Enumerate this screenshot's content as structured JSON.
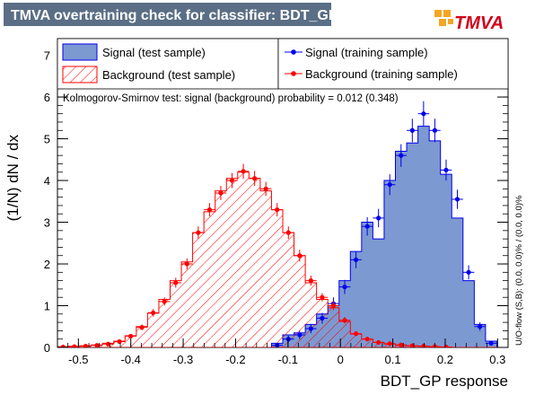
{
  "header": {
    "title": "TMVA overtraining check for classifier: BDT_GP",
    "logo_text": "TMVA"
  },
  "colors": {
    "title_bg": "#5a6e86",
    "signal_fill": "#7d99d1",
    "signal_line": "#0000ee",
    "background_line": "#ff0000",
    "background_hatch": "#ff0000"
  },
  "chart_data": {
    "type": "histogram",
    "xlabel": "BDT_GP response",
    "ylabel": "(1/N) dN / dx",
    "xlim": [
      -0.54,
      0.32
    ],
    "ylim": [
      0,
      7.4
    ],
    "xticks": [
      "-0.5",
      "-0.4",
      "-0.3",
      "-0.2",
      "-0.1",
      "0",
      "0.1",
      "0.2",
      "0.3"
    ],
    "yticks": [
      "0",
      "1",
      "2",
      "3",
      "4",
      "5",
      "6",
      "7"
    ],
    "bin_edges": [
      -0.54,
      -0.5185,
      -0.497,
      -0.4755,
      -0.454,
      -0.4325,
      -0.411,
      -0.3895,
      -0.368,
      -0.3465,
      -0.325,
      -0.3035,
      -0.282,
      -0.2605,
      -0.239,
      -0.2175,
      -0.196,
      -0.1745,
      -0.153,
      -0.1315,
      -0.11,
      -0.0885,
      -0.067,
      -0.0455,
      -0.024,
      -0.0025,
      0.019,
      0.0405,
      0.062,
      0.0835,
      0.105,
      0.1265,
      0.148,
      0.1695,
      0.191,
      0.2125,
      0.234,
      0.2555,
      0.277,
      0.2985,
      0.32
    ],
    "series": [
      {
        "name": "Signal (test sample)",
        "style": "filled-histogram",
        "values": [
          0,
          0,
          0,
          0,
          0,
          0,
          0,
          0,
          0,
          0,
          0,
          0,
          0,
          0,
          0,
          0,
          0,
          0,
          0,
          0.1,
          0.3,
          0.35,
          0.55,
          0.8,
          1.0,
          1.6,
          2.3,
          3.0,
          2.6,
          4.0,
          4.7,
          4.9,
          5.3,
          4.95,
          4.15,
          3.1,
          1.6,
          0.55,
          0.15,
          0
        ]
      },
      {
        "name": "Background (test sample)",
        "style": "hatched-histogram",
        "values": [
          0.02,
          0.03,
          0.04,
          0.06,
          0.1,
          0.15,
          0.28,
          0.5,
          0.82,
          1.15,
          1.6,
          2.05,
          2.75,
          3.25,
          3.75,
          4.05,
          4.2,
          4.05,
          3.75,
          3.3,
          2.75,
          2.2,
          1.55,
          1.15,
          0.95,
          0.62,
          0.32,
          0.2,
          0.12,
          0.08,
          0.05,
          0.04,
          0.03,
          0.02,
          0.01,
          0,
          0,
          0,
          0,
          0
        ]
      },
      {
        "name": "Signal (training sample)",
        "style": "markers",
        "values": [
          0,
          0,
          0,
          0,
          0,
          0,
          0,
          0,
          0,
          0,
          0,
          0,
          0,
          0,
          0,
          0,
          0,
          0,
          0,
          0.05,
          0.2,
          0.3,
          0.45,
          0.7,
          1.05,
          1.45,
          2.1,
          2.9,
          3.1,
          3.9,
          4.6,
          5.2,
          5.6,
          5.2,
          4.25,
          3.55,
          1.8,
          0.5,
          0.1,
          0
        ],
        "errors": [
          0,
          0,
          0,
          0,
          0,
          0,
          0,
          0,
          0,
          0,
          0,
          0,
          0,
          0,
          0,
          0,
          0,
          0,
          0,
          0.05,
          0.08,
          0.1,
          0.11,
          0.13,
          0.15,
          0.17,
          0.2,
          0.22,
          0.22,
          0.25,
          0.27,
          0.28,
          0.3,
          0.28,
          0.25,
          0.23,
          0.17,
          0.1,
          0.05,
          0
        ]
      },
      {
        "name": "Background (training sample)",
        "style": "markers",
        "values": [
          0.01,
          0.02,
          0.03,
          0.05,
          0.08,
          0.14,
          0.27,
          0.48,
          0.83,
          1.1,
          1.55,
          2.0,
          2.75,
          3.3,
          3.7,
          4.0,
          4.22,
          4.05,
          3.8,
          3.3,
          2.75,
          2.2,
          1.6,
          1.2,
          1.0,
          0.65,
          0.33,
          0.2,
          0.12,
          0.09,
          0.06,
          0.04,
          0.03,
          0.02,
          0.01,
          0,
          0,
          0,
          0,
          0
        ],
        "errors": [
          0.01,
          0.01,
          0.01,
          0.02,
          0.03,
          0.04,
          0.05,
          0.07,
          0.09,
          0.1,
          0.12,
          0.13,
          0.15,
          0.16,
          0.17,
          0.18,
          0.18,
          0.18,
          0.17,
          0.16,
          0.15,
          0.14,
          0.12,
          0.1,
          0.1,
          0.08,
          0.06,
          0.04,
          0.03,
          0.03,
          0.02,
          0.02,
          0.02,
          0.01,
          0.01,
          0,
          0,
          0,
          0,
          0
        ]
      }
    ],
    "annotation": "Kolmogorov-Smirnov test: signal (background) probability = 0.012 (0.348)",
    "side_note": "U/O-flow (S,B): (0.0, 0.0)% / (0.0, 0.0)%",
    "legend_placement": "top",
    "grid": false
  }
}
